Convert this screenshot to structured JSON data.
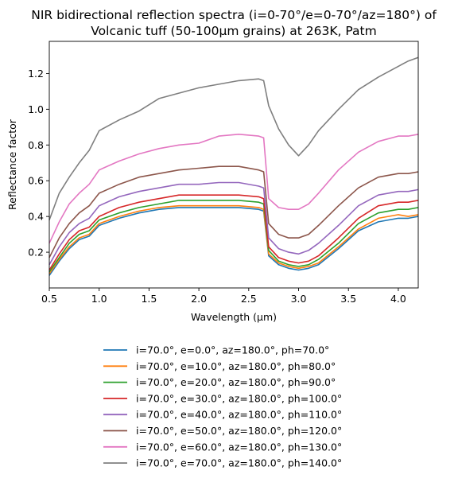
{
  "chart_data": {
    "type": "line",
    "title_lines": [
      "NIR bidirectional reflection spectra (i=0-70°/e=0-70°/az=180°) of",
      "Volcanic tuff (50-100μm grains) at 263K, Patm"
    ],
    "xlabel": "Wavelength (μm)",
    "ylabel": "Reflectance factor",
    "xlim": [
      0.5,
      4.2
    ],
    "ylim": [
      0.0,
      1.38
    ],
    "xticks": [
      "0.5",
      "1.0",
      "1.5",
      "2.0",
      "2.5",
      "3.0",
      "3.5",
      "4.0"
    ],
    "yticks": [
      "0.2",
      "0.4",
      "0.6",
      "0.8",
      "1.0",
      "1.2"
    ],
    "grid": false,
    "legend_position": "below",
    "x": [
      0.5,
      0.6,
      0.7,
      0.8,
      0.9,
      1.0,
      1.2,
      1.4,
      1.6,
      1.8,
      2.0,
      2.2,
      2.4,
      2.6,
      2.65,
      2.7,
      2.8,
      2.9,
      3.0,
      3.1,
      3.2,
      3.4,
      3.6,
      3.8,
      4.0,
      4.1,
      4.2
    ],
    "series": [
      {
        "name": "i=70.0°, e=0.0°, az=180.0°, ph=70.0°",
        "color": "#1f77b4",
        "values": [
          0.07,
          0.15,
          0.22,
          0.27,
          0.29,
          0.35,
          0.39,
          0.42,
          0.44,
          0.45,
          0.45,
          0.45,
          0.45,
          0.44,
          0.43,
          0.18,
          0.13,
          0.11,
          0.1,
          0.11,
          0.13,
          0.22,
          0.32,
          0.37,
          0.39,
          0.39,
          0.4
        ]
      },
      {
        "name": "i=70.0°, e=10.0°, az=180.0°, ph=80.0°",
        "color": "#ff7f0e",
        "values": [
          0.08,
          0.16,
          0.23,
          0.28,
          0.3,
          0.36,
          0.4,
          0.43,
          0.45,
          0.46,
          0.46,
          0.46,
          0.46,
          0.45,
          0.44,
          0.19,
          0.14,
          0.12,
          0.11,
          0.12,
          0.14,
          0.23,
          0.33,
          0.39,
          0.41,
          0.4,
          0.41
        ]
      },
      {
        "name": "i=70.0°, e=20.0°, az=180.0°, ph=90.0°",
        "color": "#2ca02c",
        "values": [
          0.09,
          0.17,
          0.25,
          0.3,
          0.32,
          0.38,
          0.42,
          0.45,
          0.47,
          0.49,
          0.49,
          0.49,
          0.49,
          0.48,
          0.47,
          0.21,
          0.15,
          0.13,
          0.12,
          0.13,
          0.16,
          0.25,
          0.36,
          0.42,
          0.44,
          0.44,
          0.45
        ]
      },
      {
        "name": "i=70.0°, e=30.0°, az=180.0°, ph=100.0°",
        "color": "#d62728",
        "values": [
          0.1,
          0.19,
          0.27,
          0.32,
          0.34,
          0.4,
          0.45,
          0.48,
          0.5,
          0.52,
          0.52,
          0.52,
          0.52,
          0.51,
          0.5,
          0.23,
          0.17,
          0.15,
          0.14,
          0.15,
          0.18,
          0.28,
          0.39,
          0.46,
          0.48,
          0.48,
          0.49
        ]
      },
      {
        "name": "i=70.0°, e=40.0°, az=180.0°, ph=110.0°",
        "color": "#9467bd",
        "values": [
          0.13,
          0.23,
          0.31,
          0.36,
          0.39,
          0.46,
          0.51,
          0.54,
          0.56,
          0.58,
          0.58,
          0.59,
          0.59,
          0.57,
          0.56,
          0.28,
          0.22,
          0.2,
          0.19,
          0.21,
          0.25,
          0.35,
          0.46,
          0.52,
          0.54,
          0.54,
          0.55
        ]
      },
      {
        "name": "i=70.0°, e=50.0°, az=180.0°, ph=120.0°",
        "color": "#8c564b",
        "values": [
          0.17,
          0.28,
          0.36,
          0.42,
          0.46,
          0.53,
          0.58,
          0.62,
          0.64,
          0.66,
          0.67,
          0.68,
          0.68,
          0.66,
          0.65,
          0.36,
          0.3,
          0.28,
          0.28,
          0.3,
          0.35,
          0.46,
          0.56,
          0.62,
          0.64,
          0.64,
          0.65
        ]
      },
      {
        "name": "i=70.0°, e=60.0°, az=180.0°, ph=130.0°",
        "color": "#e377c2",
        "values": [
          0.25,
          0.37,
          0.47,
          0.53,
          0.58,
          0.66,
          0.71,
          0.75,
          0.78,
          0.8,
          0.81,
          0.85,
          0.86,
          0.85,
          0.84,
          0.5,
          0.45,
          0.44,
          0.44,
          0.47,
          0.53,
          0.66,
          0.76,
          0.82,
          0.85,
          0.85,
          0.86
        ]
      },
      {
        "name": "i=70.0°, e=70.0°, az=180.0°, ph=140.0°",
        "color": "#7f7f7f",
        "values": [
          0.38,
          0.53,
          0.62,
          0.7,
          0.77,
          0.88,
          0.94,
          0.99,
          1.06,
          1.09,
          1.12,
          1.14,
          1.16,
          1.17,
          1.16,
          1.02,
          0.89,
          0.8,
          0.74,
          0.8,
          0.88,
          1.0,
          1.11,
          1.18,
          1.24,
          1.27,
          1.29
        ]
      }
    ]
  }
}
